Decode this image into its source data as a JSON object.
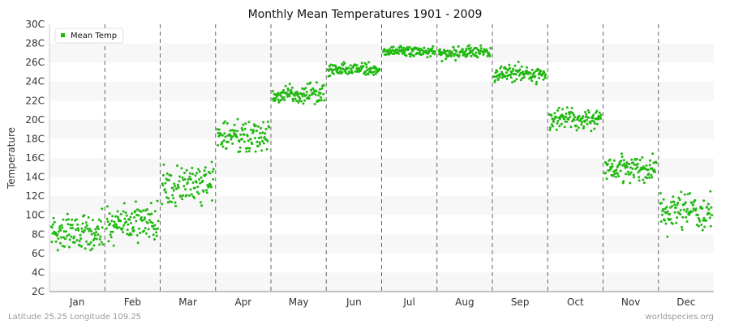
{
  "chart_data": {
    "type": "scatter",
    "title": "Monthly Mean Temperatures 1901 - 2009",
    "xlabel": "",
    "ylabel": "Temperature",
    "y_tick_labels": [
      "2C",
      "4C",
      "6C",
      "8C",
      "10C",
      "12C",
      "14C",
      "16C",
      "18C",
      "20C",
      "22C",
      "24C",
      "26C",
      "28C",
      "30C"
    ],
    "ylim": [
      2,
      30
    ],
    "categories": [
      "Jan",
      "Feb",
      "Mar",
      "Apr",
      "May",
      "Jun",
      "Jul",
      "Aug",
      "Sep",
      "Oct",
      "Nov",
      "Dec"
    ],
    "series": [
      {
        "name": "Mean Temp",
        "color": "#1fb80f",
        "points_per_month": 109,
        "monthly_summary": [
          {
            "month": "Jan",
            "mean": 8.3,
            "min": 3.6,
            "max": 11.2
          },
          {
            "month": "Feb",
            "mean": 9.2,
            "min": 4.5,
            "max": 13.8
          },
          {
            "month": "Mar",
            "mean": 13.2,
            "min": 7.6,
            "max": 16.3
          },
          {
            "month": "Apr",
            "mean": 18.4,
            "min": 15.2,
            "max": 22.0
          },
          {
            "month": "May",
            "mean": 22.6,
            "min": 20.0,
            "max": 25.3
          },
          {
            "month": "Jun",
            "mean": 25.3,
            "min": 24.0,
            "max": 26.9
          },
          {
            "month": "Jul",
            "mean": 27.2,
            "min": 25.8,
            "max": 28.7
          },
          {
            "month": "Aug",
            "mean": 27.0,
            "min": 25.7,
            "max": 28.6
          },
          {
            "month": "Sep",
            "mean": 24.8,
            "min": 23.0,
            "max": 26.9
          },
          {
            "month": "Oct",
            "mean": 20.1,
            "min": 18.5,
            "max": 22.5
          },
          {
            "month": "Nov",
            "mean": 14.9,
            "min": 12.3,
            "max": 18.0
          },
          {
            "month": "Dec",
            "mean": 10.3,
            "min": 5.6,
            "max": 13.9
          }
        ]
      }
    ],
    "grid": {
      "horizontal": "alternating bands",
      "vertical": "dashed month separators"
    },
    "legend": {
      "position": "top-left",
      "entries": [
        "Mean Temp"
      ]
    }
  },
  "footer": {
    "left": "Latitude 25.25 Longitude 109.25",
    "right": "worldspecies.org"
  }
}
